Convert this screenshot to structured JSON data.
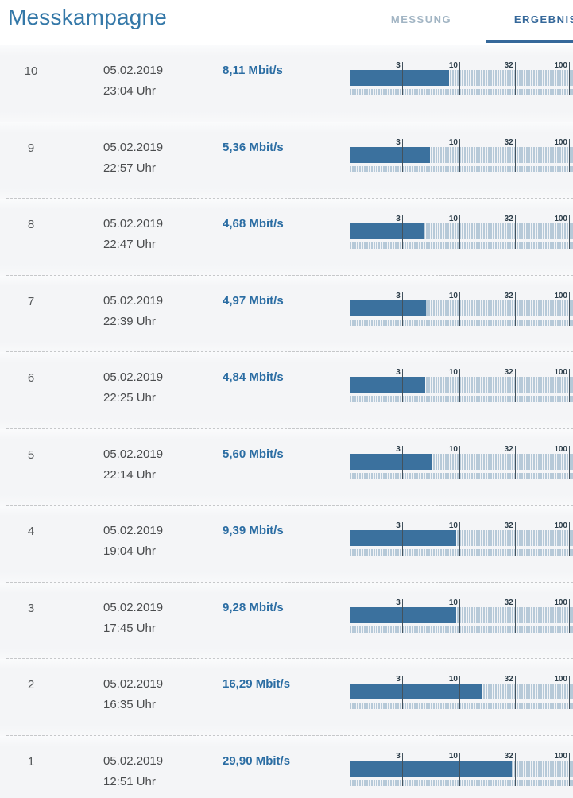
{
  "header": {
    "title": "Messkampagne",
    "tabs": [
      {
        "label": "MESSUNG",
        "active": false
      },
      {
        "label": "ERGEBNISSE",
        "active": true
      }
    ]
  },
  "gauge": {
    "scale": "log10",
    "scale_min": 1,
    "ticks": [
      3,
      10,
      32,
      100
    ],
    "unit": "Mbit/s"
  },
  "measurements": [
    {
      "index": "10",
      "date": "05.02.2019",
      "time": "23:04 Uhr",
      "speed": "8,11 Mbit/s",
      "value": 8.11
    },
    {
      "index": "9",
      "date": "05.02.2019",
      "time": "22:57 Uhr",
      "speed": "5,36 Mbit/s",
      "value": 5.36
    },
    {
      "index": "8",
      "date": "05.02.2019",
      "time": "22:47 Uhr",
      "speed": "4,68 Mbit/s",
      "value": 4.68
    },
    {
      "index": "7",
      "date": "05.02.2019",
      "time": "22:39 Uhr",
      "speed": "4,97 Mbit/s",
      "value": 4.97
    },
    {
      "index": "6",
      "date": "05.02.2019",
      "time": "22:25 Uhr",
      "speed": "4,84 Mbit/s",
      "value": 4.84
    },
    {
      "index": "5",
      "date": "05.02.2019",
      "time": "22:14 Uhr",
      "speed": "5,60 Mbit/s",
      "value": 5.6
    },
    {
      "index": "4",
      "date": "05.02.2019",
      "time": "19:04 Uhr",
      "speed": "9,39 Mbit/s",
      "value": 9.39
    },
    {
      "index": "3",
      "date": "05.02.2019",
      "time": "17:45 Uhr",
      "speed": "9,28 Mbit/s",
      "value": 9.28
    },
    {
      "index": "2",
      "date": "05.02.2019",
      "time": "16:35 Uhr",
      "speed": "16,29 Mbit/s",
      "value": 16.29
    },
    {
      "index": "1",
      "date": "05.02.2019",
      "time": "12:51 Uhr",
      "speed": "29,90 Mbit/s",
      "value": 29.9
    }
  ],
  "colors": {
    "title": "#3478a8",
    "tab_inactive": "#a2b5c4",
    "tab_active": "#35689a",
    "bar_fill": "#3b719e",
    "stripe": "#b6c9d8",
    "tick": "#43525d",
    "gauge_label": "#2c3d49",
    "speed_text": "#2b6da3",
    "body_text": "#4a4c4e",
    "index_text": "#55585a",
    "separator": "#c6c8ca",
    "list_bg": "#f5f6f8"
  },
  "chart_data": {
    "type": "bar",
    "orientation": "horizontal",
    "scale": "logarithmic",
    "axis_ticks": [
      3,
      10,
      32,
      100
    ],
    "axis_range": [
      1,
      112
    ],
    "categories": [
      "10",
      "9",
      "8",
      "7",
      "6",
      "5",
      "4",
      "3",
      "2",
      "1"
    ],
    "values": [
      8.11,
      5.36,
      4.68,
      4.97,
      4.84,
      5.6,
      9.39,
      9.28,
      16.29,
      29.9
    ],
    "unit": "Mbit/s",
    "title": "Messkampagne - Ergebnisse"
  }
}
